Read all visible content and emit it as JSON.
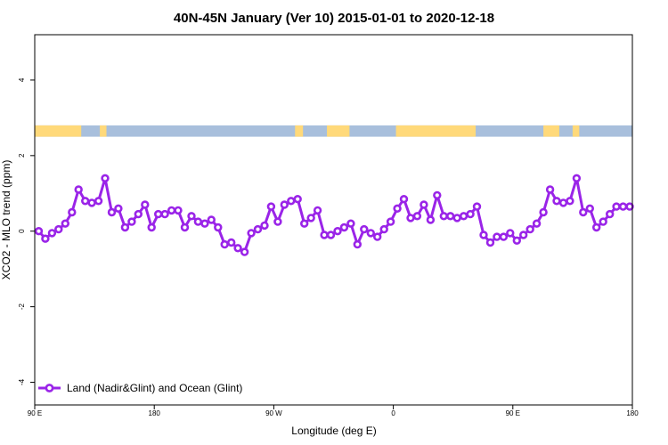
{
  "chart_data": {
    "type": "line",
    "title": "40N-45N January (Ver 10)   2015-01-01 to 2020-12-18",
    "xlabel": "Longitude (deg E)",
    "ylabel": "XCO2 - MLO trend (ppm)",
    "xlim": [
      90,
      540
    ],
    "ylim": [
      -4.6,
      5.2
    ],
    "x_ticks": [
      {
        "value": 90,
        "label": "90 E"
      },
      {
        "value": 180,
        "label": "180"
      },
      {
        "value": 270,
        "label": "90 W"
      },
      {
        "value": 360,
        "label": "0"
      },
      {
        "value": 450,
        "label": "90 E"
      },
      {
        "value": 540,
        "label": "180"
      }
    ],
    "y_ticks": [
      {
        "value": -4,
        "label": "-4"
      },
      {
        "value": -2,
        "label": "-2"
      },
      {
        "value": 0,
        "label": "0"
      },
      {
        "value": 2,
        "label": "2"
      },
      {
        "value": 4,
        "label": "4"
      }
    ],
    "grid": false,
    "legend_position": "bottom-left",
    "land_ocean_band": {
      "y_range": [
        2.5,
        2.8
      ],
      "land_color": "#ffd97a",
      "ocean_color": "#a8bfdc",
      "land_segments": [
        [
          90,
          125
        ],
        [
          139,
          144
        ],
        [
          286,
          292
        ],
        [
          310,
          327
        ],
        [
          362,
          422
        ],
        [
          473,
          485
        ],
        [
          495,
          500
        ]
      ]
    },
    "series": [
      {
        "name": "Land (Nadir&Glint) and Ocean (Glint)",
        "color": "#9a24e8",
        "x": [
          93,
          98,
          103,
          108,
          113,
          118,
          123,
          128,
          133,
          138,
          143,
          148,
          153,
          158,
          163,
          168,
          173,
          178,
          183,
          188,
          193,
          198,
          203,
          208,
          213,
          218,
          223,
          228,
          233,
          238,
          243,
          248,
          253,
          258,
          263,
          268,
          273,
          278,
          283,
          288,
          293,
          298,
          303,
          308,
          313,
          318,
          323,
          328,
          333,
          338,
          343,
          348,
          353,
          358,
          363,
          368,
          373,
          378,
          383,
          388,
          393,
          398,
          403,
          408,
          413,
          418,
          423,
          428,
          433,
          438,
          443,
          448,
          453,
          458,
          463,
          468,
          473,
          478,
          483,
          488,
          493,
          498,
          503,
          508,
          513,
          518,
          523,
          528,
          533,
          538
        ],
        "y": [
          0.0,
          -0.2,
          -0.05,
          0.05,
          0.2,
          0.5,
          1.1,
          0.8,
          0.75,
          0.8,
          1.4,
          0.5,
          0.6,
          0.1,
          0.25,
          0.45,
          0.7,
          0.1,
          0.45,
          0.45,
          0.55,
          0.55,
          0.1,
          0.4,
          0.25,
          0.2,
          0.3,
          0.1,
          -0.35,
          -0.3,
          -0.45,
          -0.55,
          -0.05,
          0.05,
          0.15,
          0.65,
          0.25,
          0.7,
          0.8,
          0.85,
          0.2,
          0.35,
          0.55,
          -0.1,
          -0.1,
          0.0,
          0.1,
          0.2,
          -0.35,
          0.05,
          -0.05,
          -0.15,
          0.05,
          0.25,
          0.6,
          0.85,
          0.35,
          0.4,
          0.7,
          0.3,
          0.95,
          0.4,
          0.4,
          0.35,
          0.4,
          0.45,
          0.65,
          -0.1,
          -0.3,
          -0.15,
          -0.15,
          -0.05,
          -0.25,
          -0.1,
          0.05,
          0.2,
          0.5,
          1.1,
          0.8,
          0.75,
          0.8,
          1.4,
          0.5,
          0.6,
          0.1,
          0.25,
          0.45,
          0.65,
          0.65,
          0.65
        ]
      }
    ]
  }
}
